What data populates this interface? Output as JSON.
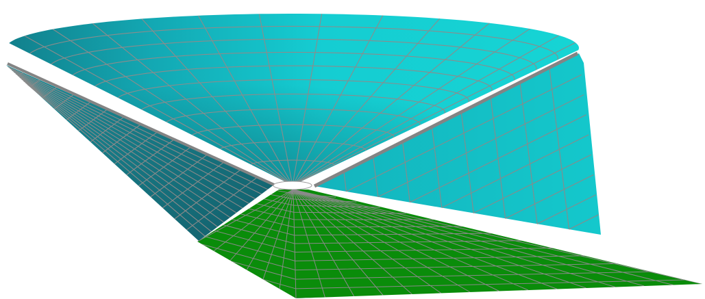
{
  "scene": {
    "background": "#ffffff",
    "colors": {
      "cone_inner_light": "#15d6d6",
      "cone_inner_mid": "#0fb7c0",
      "cone_inner_dark": "#127a86",
      "cone_outer_right": "#14c2c8",
      "cone_outer_left": "#167c88",
      "base_plate": "#0a8c0a",
      "mesh_line": "#8a8a8a",
      "seam_line": "#848484",
      "apex_hole": "#ffffff"
    },
    "objects": [
      {
        "name": "conical-horn-surface",
        "kind": "surface"
      },
      {
        "name": "ground-plane-mesh",
        "kind": "surface"
      },
      {
        "name": "apex-opening",
        "kind": "hole"
      }
    ]
  }
}
